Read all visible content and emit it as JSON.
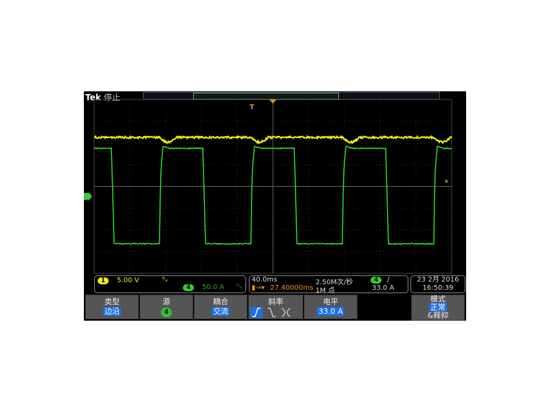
{
  "header": {
    "brand": "Tek",
    "status": "停止"
  },
  "channels": {
    "ch1": {
      "num": "1",
      "scale": "5.00 V",
      "color": "#f0f020"
    },
    "ch4": {
      "num": "4",
      "scale": "50.0 A",
      "color": "#30d030"
    }
  },
  "timebase": {
    "scale": "40.0ms",
    "sample_rate": "2.50M次/秒",
    "position": "27.40000ms",
    "record": "1M 点"
  },
  "trigger": {
    "source": "4",
    "slope_symbol": "/",
    "level": "33.0 A"
  },
  "datetime": {
    "date": "23 2月 2016",
    "time": "16:50:39"
  },
  "menu": {
    "type": {
      "label": "类型",
      "value": "边沿"
    },
    "source": {
      "label": "源",
      "value": "4"
    },
    "coupling": {
      "label": "耦合",
      "value": "交流"
    },
    "slope": {
      "label": "斜率"
    },
    "level": {
      "label": "电平",
      "value": "33.0 A"
    },
    "mode": {
      "label": "模式",
      "value": "正常",
      "extra": "&释抑"
    }
  }
}
